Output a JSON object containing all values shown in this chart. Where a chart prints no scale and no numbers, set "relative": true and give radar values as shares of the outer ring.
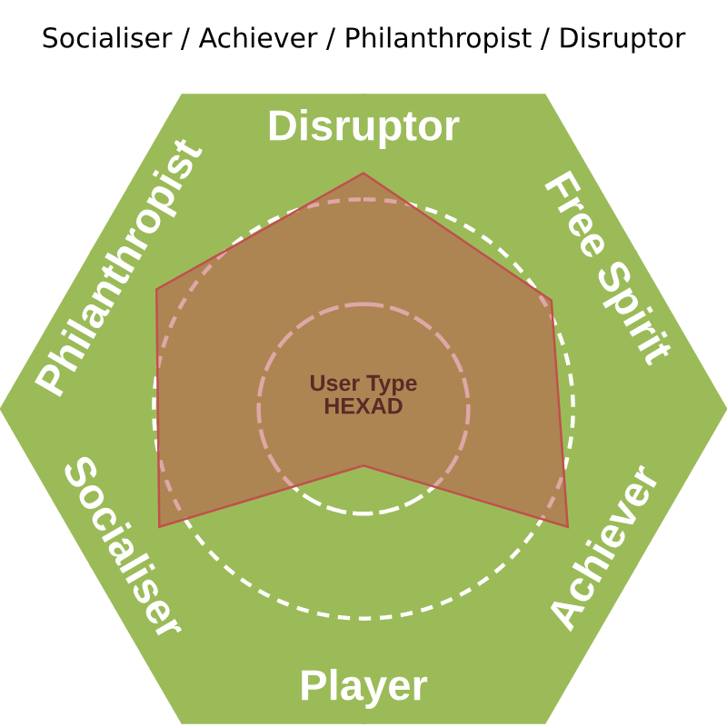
{
  "chart_data": {
    "type": "radar",
    "title": "Socialiser / Achiever / Philanthropist / Disruptor",
    "categories": [
      "Disruptor",
      "Free Spirit",
      "Achiever",
      "Player",
      "Socialiser",
      "Philanthropist"
    ],
    "relative": true,
    "series": [
      {
        "color": "#c0504d",
        "values": [
          0.75,
          0.69,
          0.75,
          0.18,
          0.75,
          0.76
        ]
      }
    ],
    "annotations": [
      "User Type\nHEXAD"
    ]
  }
}
